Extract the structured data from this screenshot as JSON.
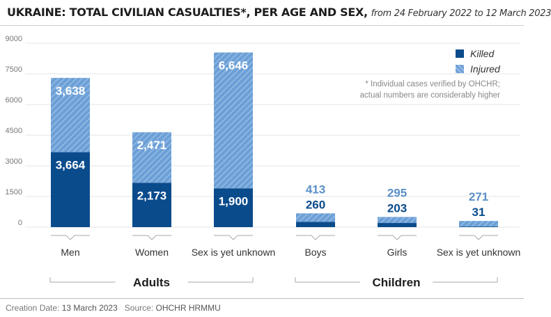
{
  "header": {
    "title": "UKRAINE: TOTAL CIVILIAN CASUALTIES*, PER AGE AND SEX,",
    "subtitle": "from 24 February 2022 to 12 March 2023"
  },
  "note": {
    "line1": "* Individual cases verified by OHCHR;",
    "line2": "actual numbers are considerably higher"
  },
  "footer": {
    "creation_label": "Creation Date:",
    "creation_date": "13 March 2023",
    "source_label": "Source:",
    "source": "OHCHR HRMMU"
  },
  "colors": {
    "killed": "#0a4b8c",
    "injured": "#6b9fd6",
    "injured_label": "#5b8fc8"
  },
  "chart_data": {
    "type": "bar",
    "stacked": true,
    "categories": [
      "Men",
      "Women",
      "Sex is yet unknown",
      "Boys",
      "Girls",
      "Sex is yet unknown"
    ],
    "groups": [
      {
        "label": "Adults",
        "categories": [
          0,
          1,
          2
        ]
      },
      {
        "label": "Children",
        "categories": [
          3,
          4,
          5
        ]
      }
    ],
    "series": [
      {
        "name": "Killed",
        "values": [
          3664,
          2173,
          1900,
          260,
          203,
          31
        ],
        "labels": [
          "3,664",
          "2,173",
          "1,900",
          "260",
          "203",
          "31"
        ]
      },
      {
        "name": "Injured",
        "values": [
          3638,
          2471,
          6646,
          413,
          295,
          271
        ],
        "labels": [
          "3,638",
          "2,471",
          "6,646",
          "413",
          "295",
          "271"
        ]
      }
    ],
    "yticks": [
      "0",
      "1500",
      "3000",
      "4500",
      "6000",
      "7500",
      "9000"
    ],
    "ylim": [
      0,
      9000
    ],
    "grid": true,
    "legend_position": "top-right"
  }
}
